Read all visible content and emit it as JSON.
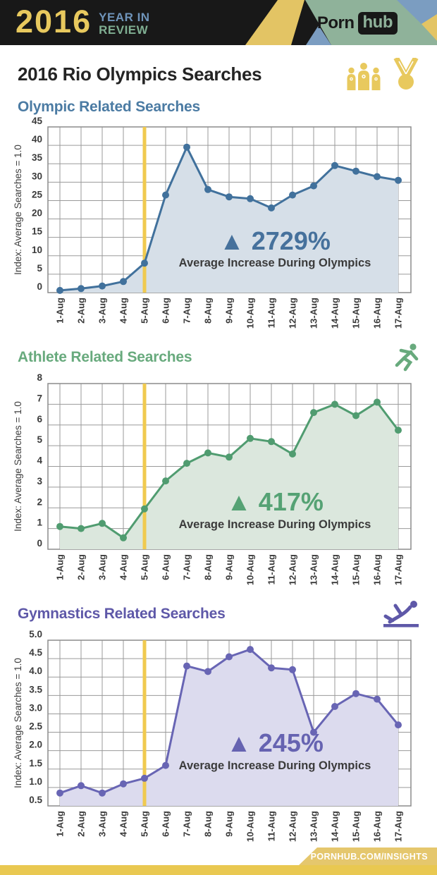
{
  "header": {
    "year": "2016",
    "tagline_line1": "YEAR IN",
    "tagline_line2": "REVIEW",
    "logo_part1": "Porn",
    "logo_part2": "hub"
  },
  "page_title": "2016 Rio Olympics Searches",
  "footer": {
    "link_text": "PORNHUB.COM/INSIGHTS"
  },
  "style": {
    "event_line_color": "#f0ca50",
    "grid_color": "#9a9a9a",
    "tick_text_color": "#3a3a3a",
    "annotation_subtitle_color": "#3b3b3b",
    "accent_gold": "#e8c95e",
    "header_blue": "#6f94ba",
    "header_green": "#8fb29a",
    "header_yellow": "#e3c464",
    "header_black": "#181818"
  },
  "chart_data": [
    {
      "type": "area",
      "title": "Olympic Related Searches",
      "icon": "medalists-podium-and-medal",
      "categories": [
        "1-Aug",
        "2-Aug",
        "3-Aug",
        "4-Aug",
        "5-Aug",
        "6-Aug",
        "7-Aug",
        "8-Aug",
        "9-Aug",
        "10-Aug",
        "11-Aug",
        "12-Aug",
        "13-Aug",
        "14-Aug",
        "15-Aug",
        "16-Aug",
        "17-Aug"
      ],
      "values": [
        0.6,
        1.1,
        1.8,
        3.0,
        8.0,
        26.5,
        39.5,
        28.0,
        26.0,
        25.5,
        23.0,
        26.5,
        29.0,
        34.5,
        33.0,
        31.5,
        30.5
      ],
      "ylabel": "Index: Average Searches = 1.0",
      "ylim": [
        0,
        45
      ],
      "ytick_step": 5,
      "ytick_decimals": 0,
      "grid": true,
      "event_line_x": "5-Aug",
      "event_day_index": 4,
      "annotation": {
        "marker": "▲",
        "value": "2729%",
        "label": "Average Increase During Olympics"
      },
      "line_color": "#41719c",
      "fill_color": "#d6dfe8",
      "title_color": "#4b7ba3",
      "annotation_color": "#46719c"
    },
    {
      "type": "area",
      "title": "Athlete Related Searches",
      "icon": "runner",
      "categories": [
        "1-Aug",
        "2-Aug",
        "3-Aug",
        "4-Aug",
        "5-Aug",
        "6-Aug",
        "7-Aug",
        "8-Aug",
        "9-Aug",
        "10-Aug",
        "11-Aug",
        "12-Aug",
        "13-Aug",
        "14-Aug",
        "15-Aug",
        "16-Aug",
        "17-Aug"
      ],
      "values": [
        1.1,
        1.0,
        1.25,
        0.55,
        1.95,
        3.3,
        4.15,
        4.65,
        4.45,
        5.35,
        5.2,
        4.6,
        6.6,
        7.0,
        6.45,
        7.1,
        5.75
      ],
      "ylabel": "Index: Average Searches = 1.0",
      "ylim": [
        0,
        8
      ],
      "ytick_step": 1,
      "ytick_decimals": 0,
      "grid": true,
      "event_line_x": "5-Aug",
      "event_day_index": 4,
      "annotation": {
        "marker": "▲",
        "value": "417%",
        "label": "Average Increase During Olympics"
      },
      "line_color": "#509c70",
      "fill_color": "#dbe7dd",
      "title_color": "#68aa7d",
      "annotation_color": "#55a274"
    },
    {
      "type": "area",
      "title": "Gymnastics Related Searches",
      "icon": "gymnast-on-beam",
      "categories": [
        "1-Aug",
        "2-Aug",
        "3-Aug",
        "4-Aug",
        "5-Aug",
        "6-Aug",
        "7-Aug",
        "8-Aug",
        "9-Aug",
        "10-Aug",
        "11-Aug",
        "12-Aug",
        "13-Aug",
        "14-Aug",
        "15-Aug",
        "16-Aug",
        "17-Aug"
      ],
      "values": [
        0.85,
        1.05,
        0.85,
        1.1,
        1.25,
        1.6,
        4.3,
        4.15,
        4.55,
        4.75,
        4.25,
        4.2,
        2.5,
        3.2,
        3.55,
        3.4,
        2.7
      ],
      "ylabel": "Index: Average Searches = 1.0",
      "ylim": [
        0.5,
        5.0
      ],
      "ytick_step": 0.5,
      "ytick_decimals": 1,
      "grid": true,
      "event_line_x": "5-Aug",
      "event_day_index": 4,
      "annotation": {
        "marker": "▲",
        "value": "245%",
        "label": "Average Increase During Olympics"
      },
      "line_color": "#6865b4",
      "fill_color": "#dcdbee",
      "title_color": "#5e58a8",
      "annotation_color": "#6663b1"
    }
  ]
}
